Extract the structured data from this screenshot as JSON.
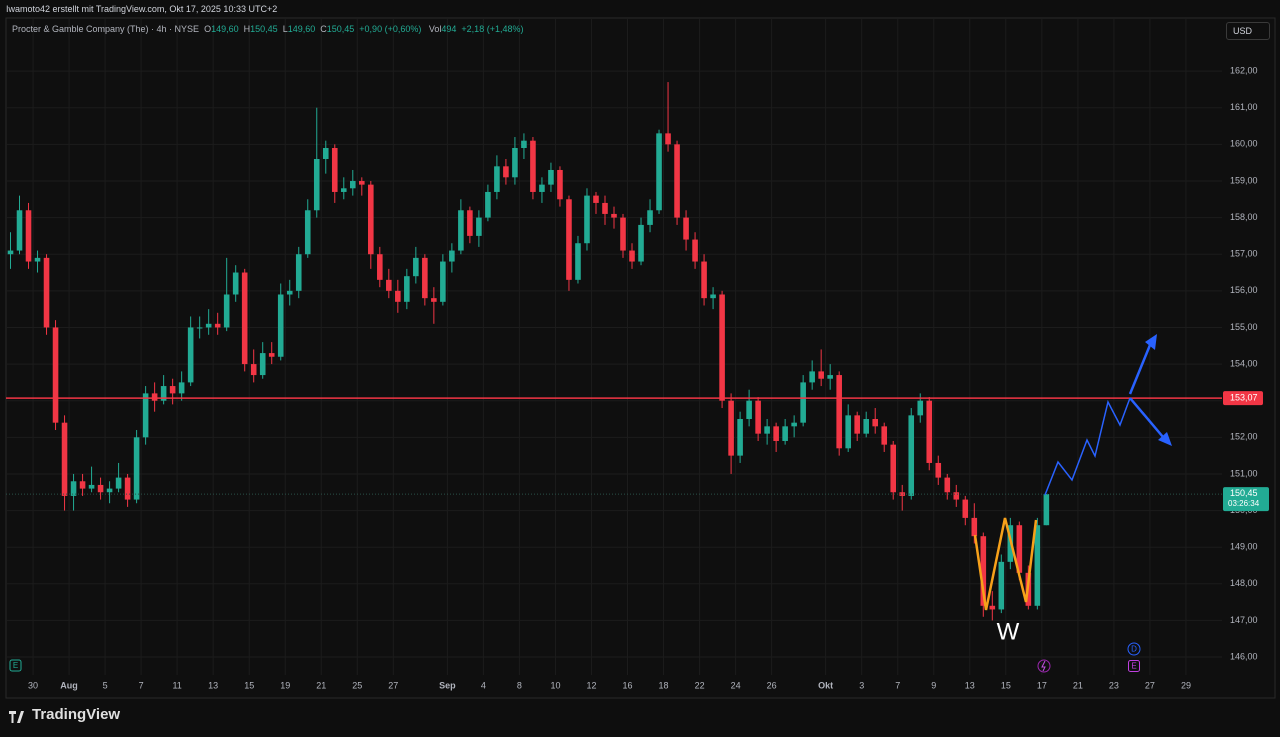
{
  "header": {
    "caption": "Iwamoto42 erstellt mit TradingView.com, Okt 17, 2025 10:33 UTC+2",
    "currency": "USD",
    "brand": "TradingView"
  },
  "legend": {
    "symbol": "Procter & Gamble Company (The) · 4h · NYSE",
    "o_key": "O",
    "o": "149,60",
    "h_key": "H",
    "h": "150,45",
    "l_key": "L",
    "l": "149,60",
    "c_key": "C",
    "c": "150,45",
    "change": "+0,90 (+0,60%)",
    "vol_key": "Vol",
    "vol": "494",
    "vol_change": "+2,18 (+1,48%)"
  },
  "annotation": "W",
  "event_markers": [
    "E",
    "D",
    "E"
  ],
  "chart_data": {
    "type": "candlestick",
    "up_color": "#22ab94",
    "down_color": "#f23645",
    "grid": true,
    "xlim": [
      -0.5,
      134.5
    ],
    "xticks": [
      {
        "value": 2.5,
        "label": "30"
      },
      {
        "value": 6.5,
        "label": "Aug"
      },
      {
        "value": 10.5,
        "label": "5"
      },
      {
        "value": 14.5,
        "label": "7"
      },
      {
        "value": 18.5,
        "label": "11"
      },
      {
        "value": 22.5,
        "label": "13"
      },
      {
        "value": 26.5,
        "label": "15"
      },
      {
        "value": 30.5,
        "label": "19"
      },
      {
        "value": 34.5,
        "label": "21"
      },
      {
        "value": 38.5,
        "label": "25"
      },
      {
        "value": 42.5,
        "label": "27"
      },
      {
        "value": 48.5,
        "label": "Sep"
      },
      {
        "value": 52.5,
        "label": "4"
      },
      {
        "value": 56.5,
        "label": "8"
      },
      {
        "value": 60.5,
        "label": "10"
      },
      {
        "value": 64.5,
        "label": "12"
      },
      {
        "value": 68.5,
        "label": "16"
      },
      {
        "value": 72.5,
        "label": "18"
      },
      {
        "value": 76.5,
        "label": "22"
      },
      {
        "value": 80.5,
        "label": "24"
      },
      {
        "value": 84.5,
        "label": "26"
      },
      {
        "value": 90.5,
        "label": "Okt"
      },
      {
        "value": 94.5,
        "label": "3"
      },
      {
        "value": 98.5,
        "label": "7"
      },
      {
        "value": 102.5,
        "label": "9"
      },
      {
        "value": 106.5,
        "label": "13"
      },
      {
        "value": 110.5,
        "label": "15"
      },
      {
        "value": 114.5,
        "label": "17"
      },
      {
        "value": 118.5,
        "label": "21"
      },
      {
        "value": 122.5,
        "label": "23"
      },
      {
        "value": 126.5,
        "label": "27"
      },
      {
        "value": 130.5,
        "label": "29"
      }
    ],
    "ylim": [
      145.51,
      163.45
    ],
    "yticks": [
      {
        "value": 146,
        "label": "146,00"
      },
      {
        "value": 147,
        "label": "147,00"
      },
      {
        "value": 148,
        "label": "148,00"
      },
      {
        "value": 149,
        "label": "149,00"
      },
      {
        "value": 150,
        "label": "150,00"
      },
      {
        "value": 151,
        "label": "151,00"
      },
      {
        "value": 152,
        "label": "152,00"
      },
      {
        "value": 153,
        "label": "153,00"
      },
      {
        "value": 154,
        "label": "154,00"
      },
      {
        "value": 155,
        "label": "155,00"
      },
      {
        "value": 156,
        "label": "156,00"
      },
      {
        "value": 157,
        "label": "157,00"
      },
      {
        "value": 158,
        "label": "158,00"
      },
      {
        "value": 159,
        "label": "159,00"
      },
      {
        "value": 160,
        "label": "160,00"
      },
      {
        "value": 161,
        "label": "161,00"
      },
      {
        "value": 162,
        "label": "162,00"
      }
    ],
    "hline": {
      "value": 153.07,
      "label": "153,07",
      "color": "#f23645"
    },
    "last_price": {
      "value": 150.45,
      "label": "150,45",
      "countdown": "03:26:34",
      "color": "#22ab94"
    },
    "candles": [
      [
        157.0,
        157.6,
        156.6,
        157.1
      ],
      [
        157.1,
        158.6,
        157.0,
        158.2
      ],
      [
        158.2,
        158.4,
        156.6,
        156.8
      ],
      [
        156.8,
        157.1,
        156.5,
        156.9
      ],
      [
        156.9,
        157.0,
        154.8,
        155.0
      ],
      [
        155.0,
        155.2,
        152.2,
        152.4
      ],
      [
        152.4,
        152.6,
        150.0,
        150.4
      ],
      [
        150.4,
        151.0,
        150.0,
        150.8
      ],
      [
        150.8,
        151.0,
        150.4,
        150.6
      ],
      [
        150.6,
        151.2,
        150.5,
        150.7
      ],
      [
        150.7,
        150.9,
        150.3,
        150.5
      ],
      [
        150.5,
        150.8,
        150.2,
        150.6
      ],
      [
        150.6,
        151.3,
        150.5,
        150.9
      ],
      [
        150.9,
        151.0,
        150.1,
        150.3
      ],
      [
        150.3,
        152.2,
        150.2,
        152.0
      ],
      [
        152.0,
        153.4,
        151.8,
        153.2
      ],
      [
        153.2,
        153.5,
        152.7,
        153.0
      ],
      [
        153.0,
        153.7,
        152.9,
        153.4
      ],
      [
        153.4,
        153.6,
        152.9,
        153.2
      ],
      [
        153.2,
        153.8,
        153.0,
        153.5
      ],
      [
        153.5,
        155.3,
        153.4,
        155.0
      ],
      [
        155.0,
        155.3,
        154.7,
        155.0
      ],
      [
        155.0,
        155.5,
        154.8,
        155.1
      ],
      [
        155.1,
        155.4,
        154.8,
        155.0
      ],
      [
        155.0,
        156.9,
        154.9,
        155.9
      ],
      [
        155.9,
        156.7,
        155.7,
        156.5
      ],
      [
        156.5,
        156.6,
        153.8,
        154.0
      ],
      [
        154.0,
        154.4,
        153.5,
        153.7
      ],
      [
        153.7,
        154.6,
        153.6,
        154.3
      ],
      [
        154.3,
        154.6,
        154.0,
        154.2
      ],
      [
        154.2,
        156.2,
        154.1,
        155.9
      ],
      [
        155.9,
        156.3,
        155.6,
        156.0
      ],
      [
        156.0,
        157.2,
        155.8,
        157.0
      ],
      [
        157.0,
        158.5,
        156.9,
        158.2
      ],
      [
        158.2,
        161.0,
        158.0,
        159.6
      ],
      [
        159.6,
        160.1,
        159.2,
        159.9
      ],
      [
        159.9,
        160.0,
        158.4,
        158.7
      ],
      [
        158.7,
        159.1,
        158.5,
        158.8
      ],
      [
        158.8,
        159.3,
        158.6,
        159.0
      ],
      [
        159.0,
        159.1,
        158.6,
        158.9
      ],
      [
        158.9,
        159.0,
        156.6,
        157.0
      ],
      [
        157.0,
        157.2,
        156.1,
        156.3
      ],
      [
        156.3,
        156.6,
        155.8,
        156.0
      ],
      [
        156.0,
        156.3,
        155.4,
        155.7
      ],
      [
        155.7,
        156.6,
        155.5,
        156.4
      ],
      [
        156.4,
        157.2,
        156.2,
        156.9
      ],
      [
        156.9,
        157.0,
        155.6,
        155.8
      ],
      [
        155.8,
        156.1,
        155.1,
        155.7
      ],
      [
        155.7,
        157.0,
        155.6,
        156.8
      ],
      [
        156.8,
        157.3,
        156.5,
        157.1
      ],
      [
        157.1,
        158.5,
        157.0,
        158.2
      ],
      [
        158.2,
        158.3,
        157.3,
        157.5
      ],
      [
        157.5,
        158.2,
        157.2,
        158.0
      ],
      [
        158.0,
        158.9,
        157.9,
        158.7
      ],
      [
        158.7,
        159.7,
        158.5,
        159.4
      ],
      [
        159.4,
        159.6,
        158.9,
        159.1
      ],
      [
        159.1,
        160.2,
        158.9,
        159.9
      ],
      [
        159.9,
        160.3,
        159.6,
        160.1
      ],
      [
        160.1,
        160.2,
        158.5,
        158.7
      ],
      [
        158.7,
        159.1,
        158.4,
        158.9
      ],
      [
        158.9,
        159.5,
        158.7,
        159.3
      ],
      [
        159.3,
        159.4,
        158.3,
        158.5
      ],
      [
        158.5,
        158.6,
        156.0,
        156.3
      ],
      [
        156.3,
        157.5,
        156.2,
        157.3
      ],
      [
        157.3,
        158.8,
        157.1,
        158.6
      ],
      [
        158.6,
        158.7,
        158.1,
        158.4
      ],
      [
        158.4,
        158.6,
        157.8,
        158.1
      ],
      [
        158.1,
        158.3,
        157.7,
        158.0
      ],
      [
        158.0,
        158.1,
        156.9,
        157.1
      ],
      [
        157.1,
        157.3,
        156.6,
        156.8
      ],
      [
        156.8,
        158.0,
        156.7,
        157.8
      ],
      [
        157.8,
        158.5,
        157.6,
        158.2
      ],
      [
        158.2,
        160.4,
        158.1,
        160.3
      ],
      [
        160.3,
        161.7,
        159.8,
        160.0
      ],
      [
        160.0,
        160.1,
        157.8,
        158.0
      ],
      [
        158.0,
        158.2,
        157.1,
        157.4
      ],
      [
        157.4,
        157.6,
        156.6,
        156.8
      ],
      [
        156.8,
        157.0,
        155.6,
        155.8
      ],
      [
        155.8,
        156.1,
        155.5,
        155.9
      ],
      [
        155.9,
        156.0,
        152.8,
        153.0
      ],
      [
        153.0,
        153.2,
        151.0,
        151.5
      ],
      [
        151.5,
        152.7,
        151.3,
        152.5
      ],
      [
        152.5,
        153.3,
        152.3,
        153.0
      ],
      [
        153.0,
        153.1,
        151.9,
        152.1
      ],
      [
        152.1,
        152.5,
        151.8,
        152.3
      ],
      [
        152.3,
        152.4,
        151.6,
        151.9
      ],
      [
        151.9,
        152.5,
        151.8,
        152.3
      ],
      [
        152.3,
        152.6,
        152.0,
        152.4
      ],
      [
        152.4,
        153.7,
        152.3,
        153.5
      ],
      [
        153.5,
        154.1,
        153.3,
        153.8
      ],
      [
        153.8,
        154.4,
        153.4,
        153.6
      ],
      [
        153.6,
        154.0,
        153.3,
        153.7
      ],
      [
        153.7,
        153.8,
        151.5,
        151.7
      ],
      [
        151.7,
        152.9,
        151.6,
        152.6
      ],
      [
        152.6,
        152.7,
        151.9,
        152.1
      ],
      [
        152.1,
        152.7,
        152.0,
        152.5
      ],
      [
        152.5,
        152.8,
        152.1,
        152.3
      ],
      [
        152.3,
        152.4,
        151.6,
        151.8
      ],
      [
        151.8,
        151.9,
        150.3,
        150.5
      ],
      [
        150.5,
        150.7,
        150.0,
        150.4
      ],
      [
        150.4,
        152.8,
        150.3,
        152.6
      ],
      [
        152.6,
        153.2,
        152.4,
        153.0
      ],
      [
        153.0,
        153.1,
        151.1,
        151.3
      ],
      [
        151.3,
        151.5,
        150.7,
        150.9
      ],
      [
        150.9,
        151.0,
        150.3,
        150.5
      ],
      [
        150.5,
        150.7,
        150.1,
        150.3
      ],
      [
        150.3,
        150.4,
        149.6,
        149.8
      ],
      [
        149.8,
        150.2,
        149.1,
        149.3
      ],
      [
        149.3,
        149.4,
        147.1,
        147.4
      ],
      [
        147.4,
        147.8,
        147.0,
        147.3
      ],
      [
        147.3,
        148.8,
        147.2,
        148.6
      ],
      [
        148.6,
        149.8,
        148.4,
        149.6
      ],
      [
        149.6,
        149.7,
        148.1,
        148.3
      ],
      [
        148.3,
        148.5,
        147.3,
        147.4
      ],
      [
        147.4,
        149.8,
        147.3,
        149.6
      ],
      [
        149.6,
        150.45,
        149.6,
        150.45
      ]
    ]
  }
}
